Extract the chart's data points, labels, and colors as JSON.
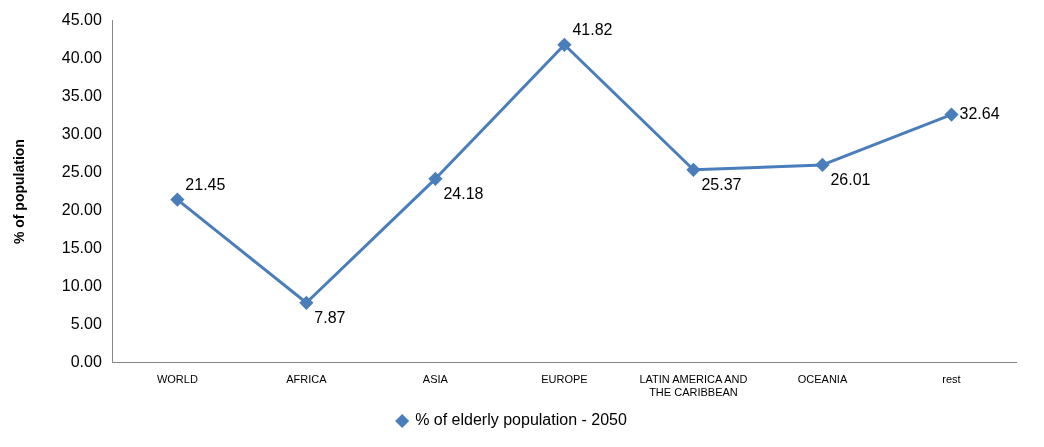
{
  "chart_data": {
    "type": "line",
    "ylabel": "% of population",
    "categories": [
      "WORLD",
      "AFRICA",
      "ASIA",
      "EUROPE",
      "LATIN AMERICA AND THE CARIBBEAN",
      "OCEANIA",
      "rest"
    ],
    "series": [
      {
        "name": "% of elderly population - 2050",
        "color": "#4a7ebb",
        "values": [
          21.45,
          7.87,
          24.18,
          41.82,
          25.37,
          26.01,
          32.64
        ]
      }
    ],
    "ylim": [
      0,
      45
    ],
    "yticks": [
      {
        "value": 0,
        "label": "0.00"
      },
      {
        "value": 5,
        "label": "5.00"
      },
      {
        "value": 10,
        "label": "10.00"
      },
      {
        "value": 15,
        "label": "15.00"
      },
      {
        "value": 20,
        "label": "20.00"
      },
      {
        "value": 25,
        "label": "25.00"
      },
      {
        "value": 30,
        "label": "30.00"
      },
      {
        "value": 35,
        "label": "35.00"
      },
      {
        "value": 40,
        "label": "40.00"
      },
      {
        "value": 45,
        "label": "45.00"
      }
    ],
    "grid": false,
    "legend": "bottom",
    "marker": "diamond",
    "line_style": "solid",
    "data_labels": true
  }
}
